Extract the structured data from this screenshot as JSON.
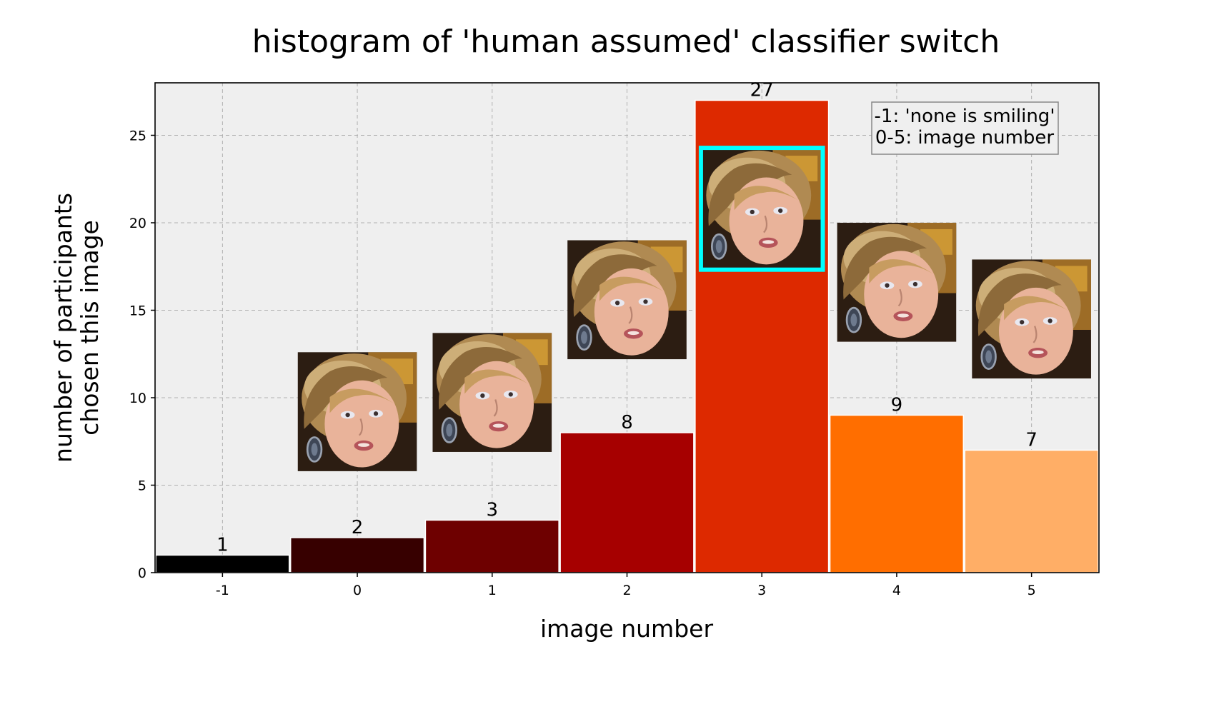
{
  "chart_data": {
    "type": "bar",
    "title": "histogram of 'human assumed' classifier switch",
    "xlabel": "image number",
    "ylabel_lines": [
      "number of participants",
      "chosen this image"
    ],
    "categories": [
      "-1",
      "0",
      "1",
      "2",
      "3",
      "4",
      "5"
    ],
    "values": [
      1,
      2,
      3,
      8,
      27,
      9,
      7
    ],
    "bar_labels": [
      "1",
      "2",
      "3",
      "8",
      "27",
      "9",
      "7"
    ],
    "colors": [
      "#000000",
      "#370000",
      "#6e0000",
      "#a60000",
      "#dd2900",
      "#ff6e00",
      "#ffae66"
    ],
    "ylim": [
      0,
      28
    ],
    "yticks": [
      0,
      5,
      10,
      15,
      20,
      25
    ],
    "grid": true,
    "background": "#efefef",
    "highlight_color": "#00ffff",
    "highlight_category": "3",
    "annotation_lines": [
      "-1: 'none is smiling'",
      "0-5: image number"
    ],
    "annotation_placement": "top-right",
    "thumbnails": [
      {
        "category": "0",
        "image": "face-thumbnail",
        "bottom_value": 5.8,
        "top_value": 12.6
      },
      {
        "category": "1",
        "image": "face-thumbnail",
        "bottom_value": 6.9,
        "top_value": 13.7
      },
      {
        "category": "2",
        "image": "face-thumbnail",
        "bottom_value": 12.2,
        "top_value": 19.0
      },
      {
        "category": "3",
        "image": "face-thumbnail",
        "bottom_value": 17.4,
        "top_value": 24.2
      },
      {
        "category": "4",
        "image": "face-thumbnail",
        "bottom_value": 13.2,
        "top_value": 20.0
      },
      {
        "category": "5",
        "image": "face-thumbnail",
        "bottom_value": 11.1,
        "top_value": 17.9
      }
    ]
  }
}
